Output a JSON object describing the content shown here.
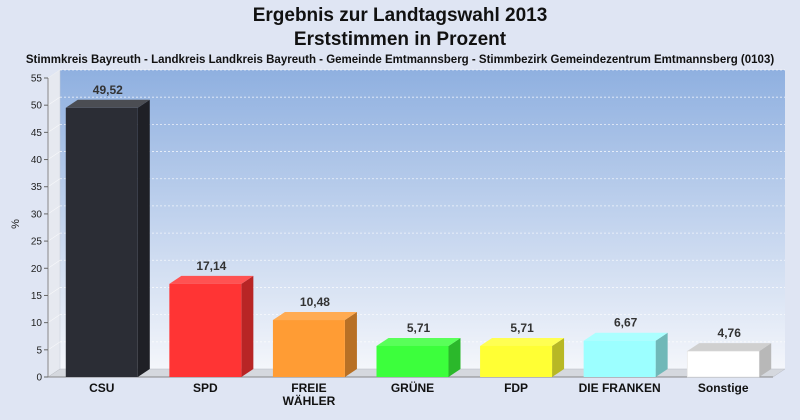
{
  "chart_data": {
    "type": "bar",
    "title": "Ergebnis zur Landtagswahl 2013",
    "subtitle": "Erststimmen in Prozent",
    "caption": "Stimmkreis Bayreuth - Landkreis Landkreis Bayreuth - Gemeinde Emtmannsberg - Stimmbezirk Gemeindezentrum Emtmannsberg (0103)",
    "ylabel": "%",
    "xlabel": "",
    "ylim": [
      0,
      55
    ],
    "yticks": [
      0,
      5,
      10,
      15,
      20,
      25,
      30,
      35,
      40,
      45,
      50,
      55
    ],
    "grid": true,
    "categories": [
      "CSU",
      "SPD",
      "FREIE WÄHLER",
      "GRÜNE",
      "FDP",
      "DIE FRANKEN",
      "Sonstige"
    ],
    "category_lines": [
      [
        "CSU"
      ],
      [
        "SPD"
      ],
      [
        "FREIE",
        "WÄHLER"
      ],
      [
        "GRÜNE"
      ],
      [
        "FDP"
      ],
      [
        "DIE FRANKEN"
      ],
      [
        "Sonstige"
      ]
    ],
    "values": [
      49.52,
      17.14,
      10.48,
      5.71,
      5.71,
      6.67,
      4.76
    ],
    "value_labels": [
      "49,52",
      "17,14",
      "10,48",
      "5,71",
      "5,71",
      "6,67",
      "4,76"
    ],
    "colors": [
      "#2b2d35",
      "#ff3434",
      "#ff9c34",
      "#3cff3c",
      "#ffff34",
      "#9cffff",
      "#ffffff"
    ]
  }
}
